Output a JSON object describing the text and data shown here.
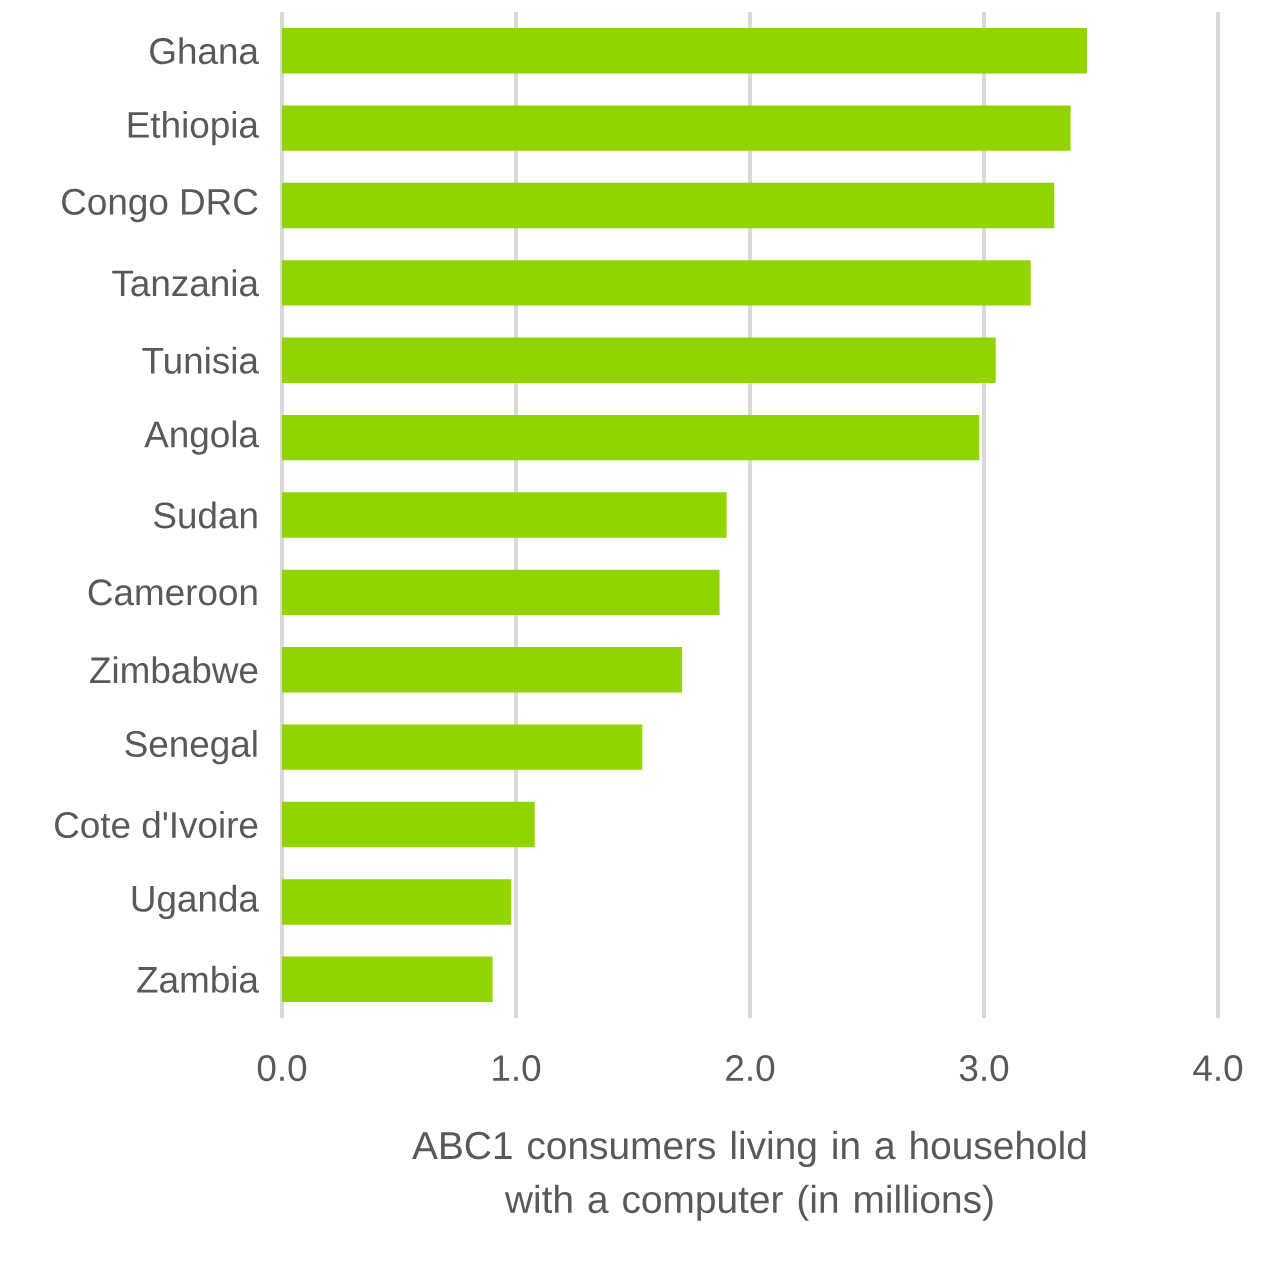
{
  "chart_data": {
    "type": "bar",
    "orientation": "horizontal",
    "categories": [
      "Ghana",
      "Ethiopia",
      "Congo DRC",
      "Tanzania",
      "Tunisia",
      "Angola",
      "Sudan",
      "Cameroon",
      "Zimbabwe",
      "Senegal",
      "Cote d'Ivoire",
      "Uganda",
      "Zambia"
    ],
    "values": [
      3.44,
      3.37,
      3.3,
      3.2,
      3.05,
      2.98,
      1.9,
      1.87,
      1.71,
      1.54,
      1.08,
      0.98,
      0.9
    ],
    "color": "#92d400",
    "xlabel": "ABC1 consumers living in a household with a computer (in millions)",
    "xlim": [
      0,
      4
    ],
    "xticks": [
      {
        "value": 0,
        "label": "0.0"
      },
      {
        "value": 1,
        "label": "1.0"
      },
      {
        "value": 2,
        "label": "2.0"
      },
      {
        "value": 3,
        "label": "3.0"
      },
      {
        "value": 4,
        "label": "4.0"
      }
    ],
    "grid": "x"
  }
}
